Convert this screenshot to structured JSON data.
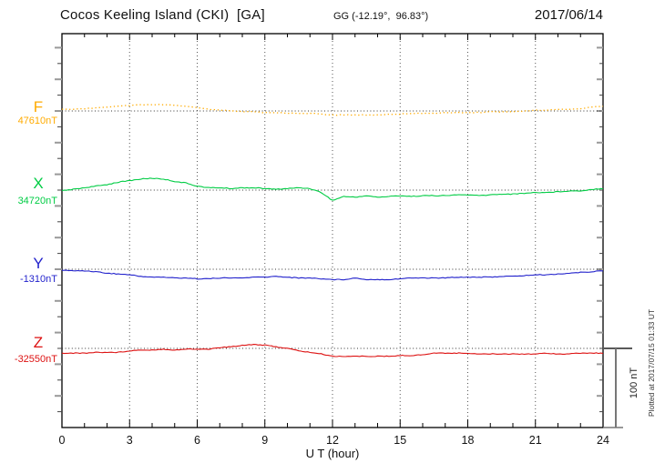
{
  "header": {
    "title": "Cocos Keeling Island (CKI)  [GA]",
    "coordinates": "GG (-12.19°,  96.83°)",
    "date": "2017/06/14"
  },
  "side_note": {
    "text": "Plotted at 2017/07/15 01:33 UT"
  },
  "scale_bar": {
    "label": "100 nT",
    "nT": 100
  },
  "colors": {
    "F": "#FFAB00",
    "X": "#00CC44",
    "Y": "#2222CC",
    "Z": "#DD1111",
    "axis": "#000000",
    "grid": "#555555",
    "baseline_dots": "#333333"
  },
  "chart_data": {
    "type": "line",
    "title": "Cocos Keeling Island (CKI)  [GA]",
    "subtitle": "GG (-12.19°,  96.83°)",
    "date": "2017/06/14",
    "xlabel": "U T (hour)",
    "ylabel": "nT",
    "xlim": [
      0,
      24
    ],
    "x_ticks": [
      0,
      3,
      6,
      9,
      12,
      15,
      18,
      21,
      24
    ],
    "x_minor_tick_hours": 1,
    "x_start": 0,
    "x_step_hours": 0.5,
    "grid": "dotted vertical every 3 h, dotted horizontal baseline per component",
    "legend_position": "left margin, one colored letter per trace",
    "scale": "100 nT reference bar at lower right",
    "series": [
      {
        "name": "F",
        "baseline_label": "47610nT",
        "baseline_nT": 47610,
        "style": "dotted",
        "values": [
          47612,
          47612,
          47613,
          47614,
          47615,
          47616,
          47617,
          47618,
          47618,
          47618,
          47617,
          47616,
          47614,
          47612,
          47611,
          47610,
          47609,
          47609,
          47608,
          47608,
          47607,
          47607,
          47607,
          47606,
          47605,
          47605,
          47605,
          47605,
          47605,
          47606,
          47606,
          47607,
          47607,
          47607,
          47608,
          47608,
          47608,
          47608,
          47609,
          47609,
          47609,
          47610,
          47611,
          47611,
          47612,
          47612,
          47613,
          47615,
          47616
        ]
      },
      {
        "name": "X",
        "baseline_label": "34720nT",
        "baseline_nT": 34720,
        "style": "solid",
        "values": [
          34719,
          34721,
          34723,
          34725,
          34727,
          34730,
          34732,
          34734,
          34735,
          34734,
          34731,
          34729,
          34725,
          34723,
          34723,
          34722,
          34723,
          34723,
          34722,
          34721,
          34722,
          34723,
          34722,
          34717,
          34707,
          34712,
          34711,
          34713,
          34711,
          34712,
          34713,
          34712,
          34713,
          34713,
          34713,
          34714,
          34714,
          34713,
          34714,
          34715,
          34715,
          34716,
          34717,
          34717,
          34718,
          34719,
          34719,
          34721,
          34722
        ]
      },
      {
        "name": "Y",
        "baseline_label": "-1310nT",
        "baseline_nT": -1310,
        "style": "solid",
        "values": [
          -1311,
          -1312,
          -1312,
          -1313,
          -1315,
          -1316,
          -1317,
          -1319,
          -1320,
          -1320,
          -1321,
          -1321,
          -1322,
          -1322,
          -1321,
          -1321,
          -1321,
          -1320,
          -1320,
          -1319,
          -1320,
          -1321,
          -1321,
          -1322,
          -1323,
          -1323,
          -1321,
          -1323,
          -1323,
          -1323,
          -1322,
          -1321,
          -1321,
          -1321,
          -1321,
          -1320,
          -1320,
          -1320,
          -1320,
          -1319,
          -1319,
          -1318,
          -1317,
          -1317,
          -1316,
          -1315,
          -1314,
          -1313,
          -1312
        ]
      },
      {
        "name": "Z",
        "baseline_label": "-32550nT",
        "baseline_nT": -32550,
        "style": "solid",
        "values": [
          -32556,
          -32556,
          -32556,
          -32555,
          -32555,
          -32555,
          -32553,
          -32552,
          -32552,
          -32551,
          -32552,
          -32551,
          -32551,
          -32551,
          -32549,
          -32548,
          -32546,
          -32545,
          -32546,
          -32548,
          -32550,
          -32553,
          -32555,
          -32557,
          -32560,
          -32560,
          -32560,
          -32560,
          -32560,
          -32560,
          -32559,
          -32559,
          -32558,
          -32556,
          -32556,
          -32556,
          -32556,
          -32557,
          -32557,
          -32557,
          -32557,
          -32557,
          -32557,
          -32556,
          -32557,
          -32557,
          -32556,
          -32556,
          -32556
        ]
      }
    ]
  }
}
